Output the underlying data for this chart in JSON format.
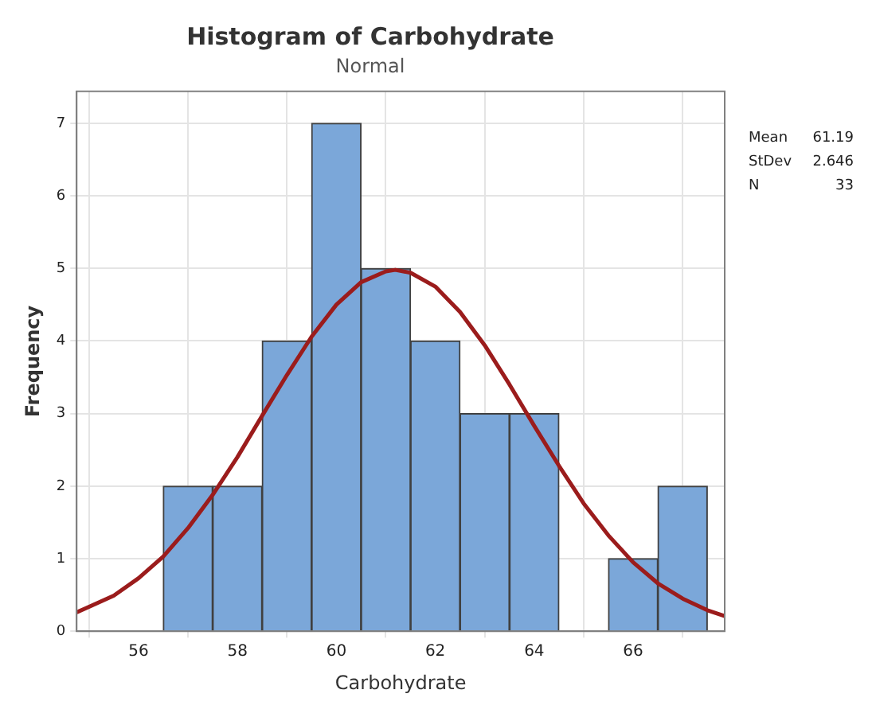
{
  "chart_data": {
    "type": "histogram",
    "title": "Histogram of Carbohydrate",
    "subtitle": "Normal",
    "xlabel": "Carbohydrate",
    "ylabel": "Frequency",
    "bins": [
      56.5,
      57.5,
      58.5,
      59.5,
      60.5,
      61.5,
      62.5,
      63.5,
      64.5,
      65.5,
      66.5,
      67.5
    ],
    "series": [
      {
        "color": "#7ba7d9",
        "values": [
          2,
          2,
          4,
          7,
          5,
          4,
          3,
          3,
          0,
          1,
          2
        ]
      },
      {
        "type": "line",
        "color": "#9b1c1c",
        "x": [
          54.75,
          55.5,
          56,
          56.5,
          57,
          57.5,
          58,
          58.5,
          59,
          59.5,
          60,
          60.5,
          61,
          61.19,
          61.5,
          62,
          62.5,
          63,
          63.5,
          64,
          64.5,
          65,
          65.5,
          66,
          66.5,
          67,
          67.5,
          67.85
        ],
        "values": [
          0.26,
          0.49,
          0.73,
          1.03,
          1.42,
          1.88,
          2.4,
          2.97,
          3.53,
          4.06,
          4.5,
          4.81,
          4.96,
          4.98,
          4.94,
          4.75,
          4.4,
          3.94,
          3.4,
          2.83,
          2.28,
          1.76,
          1.32,
          0.95,
          0.66,
          0.45,
          0.29,
          0.21
        ]
      }
    ],
    "xlim": [
      54.75,
      67.85
    ],
    "xticks": [
      56,
      58,
      60,
      62,
      64,
      66
    ],
    "ylim": [
      0,
      7.44
    ],
    "yticks": [
      0,
      1,
      2,
      3,
      4,
      5,
      6,
      7
    ],
    "grid": true,
    "legend": false,
    "marker": "none",
    "line_style": "solid",
    "annotations": [
      "Mean 61.19",
      "StDev 2.646",
      "N 33"
    ]
  }
}
